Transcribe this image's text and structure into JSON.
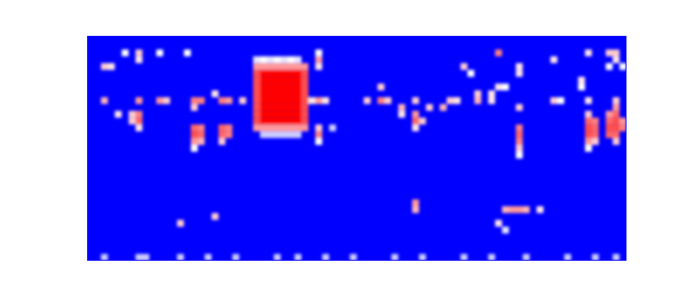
{
  "chart_data": {
    "type": "heatmap",
    "tick_labels": false,
    "xlim": [
      0,
      78
    ],
    "ylim": [
      0,
      33
    ],
    "zlim": [
      0,
      1
    ],
    "cells": [
      [
        2,
        4,
        0.6
      ],
      [
        3,
        4,
        0.55
      ],
      [
        5,
        2,
        0.5
      ],
      [
        7,
        2,
        0.6
      ],
      [
        7,
        3,
        0.55
      ],
      [
        10,
        2,
        0.5
      ],
      [
        14,
        2,
        0.5
      ],
      [
        2,
        9,
        0.65
      ],
      [
        4,
        11,
        0.55
      ],
      [
        7,
        9,
        0.7
      ],
      [
        10,
        9,
        0.7
      ],
      [
        11,
        9,
        0.6
      ],
      [
        15,
        9,
        0.75
      ],
      [
        16,
        9,
        0.75
      ],
      [
        15,
        10,
        0.6
      ],
      [
        19,
        9,
        0.75
      ],
      [
        20,
        9,
        0.7
      ],
      [
        22,
        9,
        0.6
      ],
      [
        18,
        8,
        0.55
      ],
      [
        6,
        11,
        0.6
      ],
      [
        7,
        11,
        0.75
      ],
      [
        7,
        12,
        0.8
      ],
      [
        6,
        12,
        0.6
      ],
      [
        7,
        13,
        0.55
      ],
      [
        15,
        13,
        0.8
      ],
      [
        16,
        13,
        0.75
      ],
      [
        15,
        14,
        0.85
      ],
      [
        16,
        14,
        0.8
      ],
      [
        15,
        15,
        0.7
      ],
      [
        16,
        15,
        0.65
      ],
      [
        15,
        16,
        0.5
      ],
      [
        19,
        13,
        0.8
      ],
      [
        20,
        13,
        0.75
      ],
      [
        19,
        14,
        0.8
      ],
      [
        20,
        14,
        0.75
      ],
      [
        19,
        15,
        0.6
      ],
      [
        24,
        3,
        0.45
      ],
      [
        25,
        3,
        0.5
      ],
      [
        26,
        3,
        0.45
      ],
      [
        27,
        3,
        0.5
      ],
      [
        28,
        3,
        0.45
      ],
      [
        29,
        3,
        0.5
      ],
      [
        30,
        3,
        0.45
      ],
      [
        24,
        4,
        0.7
      ],
      [
        25,
        4,
        0.7
      ],
      [
        26,
        4,
        0.7
      ],
      [
        27,
        4,
        0.7
      ],
      [
        28,
        4,
        0.7
      ],
      [
        29,
        4,
        0.7
      ],
      [
        30,
        4,
        0.7
      ],
      [
        31,
        4,
        0.7
      ],
      [
        24,
        5,
        0.85
      ],
      [
        25,
        5,
        1
      ],
      [
        26,
        5,
        1
      ],
      [
        27,
        5,
        1
      ],
      [
        28,
        5,
        1
      ],
      [
        29,
        5,
        1
      ],
      [
        30,
        5,
        1
      ],
      [
        31,
        5,
        0.85
      ],
      [
        24,
        6,
        0.85
      ],
      [
        25,
        6,
        1
      ],
      [
        26,
        6,
        1
      ],
      [
        27,
        6,
        1
      ],
      [
        28,
        6,
        1
      ],
      [
        29,
        6,
        1
      ],
      [
        30,
        6,
        1
      ],
      [
        31,
        6,
        0.85
      ],
      [
        24,
        7,
        0.85
      ],
      [
        25,
        7,
        1
      ],
      [
        26,
        7,
        1
      ],
      [
        27,
        7,
        1
      ],
      [
        28,
        7,
        1
      ],
      [
        29,
        7,
        1
      ],
      [
        30,
        7,
        1
      ],
      [
        31,
        7,
        0.85
      ],
      [
        24,
        8,
        0.85
      ],
      [
        25,
        8,
        1
      ],
      [
        26,
        8,
        1
      ],
      [
        27,
        8,
        1
      ],
      [
        28,
        8,
        1
      ],
      [
        29,
        8,
        1
      ],
      [
        30,
        8,
        1
      ],
      [
        31,
        8,
        0.85
      ],
      [
        24,
        9,
        0.85
      ],
      [
        25,
        9,
        1
      ],
      [
        26,
        9,
        1
      ],
      [
        27,
        9,
        1
      ],
      [
        28,
        9,
        1
      ],
      [
        29,
        9,
        1
      ],
      [
        30,
        9,
        1
      ],
      [
        31,
        9,
        0.85
      ],
      [
        24,
        10,
        0.85
      ],
      [
        25,
        10,
        1
      ],
      [
        26,
        10,
        1
      ],
      [
        27,
        10,
        1
      ],
      [
        28,
        10,
        1
      ],
      [
        29,
        10,
        1
      ],
      [
        30,
        10,
        1
      ],
      [
        31,
        10,
        0.85
      ],
      [
        24,
        11,
        0.85
      ],
      [
        25,
        11,
        1
      ],
      [
        26,
        11,
        1
      ],
      [
        27,
        11,
        1
      ],
      [
        28,
        11,
        1
      ],
      [
        29,
        11,
        1
      ],
      [
        30,
        11,
        1
      ],
      [
        31,
        11,
        0.85
      ],
      [
        24,
        12,
        0.85
      ],
      [
        25,
        12,
        1
      ],
      [
        26,
        12,
        1
      ],
      [
        27,
        12,
        1
      ],
      [
        28,
        12,
        1
      ],
      [
        29,
        12,
        1
      ],
      [
        30,
        12,
        1
      ],
      [
        31,
        12,
        0.85
      ],
      [
        24,
        13,
        0.7
      ],
      [
        25,
        13,
        0.7
      ],
      [
        26,
        13,
        0.7
      ],
      [
        27,
        13,
        0.7
      ],
      [
        28,
        13,
        0.7
      ],
      [
        29,
        13,
        0.7
      ],
      [
        30,
        13,
        0.7
      ],
      [
        31,
        13,
        0.7
      ],
      [
        25,
        14,
        0.4
      ],
      [
        26,
        14,
        0.4
      ],
      [
        27,
        14,
        0.4
      ],
      [
        28,
        14,
        0.4
      ],
      [
        29,
        14,
        0.4
      ],
      [
        30,
        14,
        0.4
      ],
      [
        32,
        9,
        0.55
      ],
      [
        33,
        2,
        0.5
      ],
      [
        33,
        3,
        0.7
      ],
      [
        33,
        4,
        0.55
      ],
      [
        33,
        9,
        0.7
      ],
      [
        34,
        9,
        0.55
      ],
      [
        33,
        13,
        0.6
      ],
      [
        33,
        14,
        0.75
      ],
      [
        33,
        15,
        0.5
      ],
      [
        35,
        13,
        0.4
      ],
      [
        40,
        9,
        0.6
      ],
      [
        42,
        7,
        0.6
      ],
      [
        42,
        9,
        0.75
      ],
      [
        43,
        9,
        0.6
      ],
      [
        45,
        10,
        0.65
      ],
      [
        45,
        11,
        0.55
      ],
      [
        47,
        9,
        0.6
      ],
      [
        47,
        11,
        0.7
      ],
      [
        47,
        12,
        0.8
      ],
      [
        48,
        12,
        0.6
      ],
      [
        47,
        13,
        0.55
      ],
      [
        49,
        10,
        0.6
      ],
      [
        51,
        10,
        0.65
      ],
      [
        52,
        9,
        0.6
      ],
      [
        53,
        9,
        0.55
      ],
      [
        54,
        4,
        0.6
      ],
      [
        55,
        5,
        0.5
      ],
      [
        56,
        8,
        0.6
      ],
      [
        56,
        9,
        0.65
      ],
      [
        58,
        8,
        0.55
      ],
      [
        59,
        2,
        0.75
      ],
      [
        59,
        7,
        0.55
      ],
      [
        60,
        7,
        0.5
      ],
      [
        58,
        9,
        0.55
      ],
      [
        62,
        4,
        0.55
      ],
      [
        62,
        5,
        0.55
      ],
      [
        62,
        10,
        0.6
      ],
      [
        62,
        13,
        0.75
      ],
      [
        62,
        14,
        0.8
      ],
      [
        62,
        15,
        0.75
      ],
      [
        62,
        16,
        0.6
      ],
      [
        62,
        17,
        0.5
      ],
      [
        67,
        3,
        0.55
      ],
      [
        67,
        9,
        0.6
      ],
      [
        68,
        9,
        0.5
      ],
      [
        71,
        6,
        0.55
      ],
      [
        71,
        7,
        0.5
      ],
      [
        72,
        11,
        0.6
      ],
      [
        72,
        12,
        0.8
      ],
      [
        73,
        12,
        0.75
      ],
      [
        72,
        13,
        0.85
      ],
      [
        73,
        13,
        0.8
      ],
      [
        72,
        14,
        0.85
      ],
      [
        73,
        14,
        0.8
      ],
      [
        72,
        15,
        0.7
      ],
      [
        73,
        15,
        0.6
      ],
      [
        72,
        16,
        0.5
      ],
      [
        76,
        9,
        0.6
      ],
      [
        76,
        10,
        0.7
      ],
      [
        75,
        11,
        0.7
      ],
      [
        76,
        11,
        0.8
      ],
      [
        75,
        12,
        0.8
      ],
      [
        76,
        12,
        0.85
      ],
      [
        77,
        12,
        0.7
      ],
      [
        75,
        13,
        0.85
      ],
      [
        76,
        13,
        0.85
      ],
      [
        77,
        13,
        0.75
      ],
      [
        75,
        14,
        0.8
      ],
      [
        76,
        14,
        0.8
      ],
      [
        76,
        15,
        0.6
      ],
      [
        72,
        2,
        0.55
      ],
      [
        75,
        2,
        0.6
      ],
      [
        76,
        2,
        0.6
      ],
      [
        76,
        3,
        0.55
      ],
      [
        75,
        4,
        0.5
      ],
      [
        77,
        4,
        0.5
      ],
      [
        72,
        9,
        0.55
      ],
      [
        47,
        24,
        0.7
      ],
      [
        47,
        25,
        0.65
      ],
      [
        13,
        27,
        0.6
      ],
      [
        18,
        26,
        0.6
      ],
      [
        60,
        25,
        0.65
      ],
      [
        61,
        25,
        0.7
      ],
      [
        62,
        25,
        0.7
      ],
      [
        63,
        25,
        0.65
      ],
      [
        65,
        25,
        0.55
      ],
      [
        59,
        27,
        0.55
      ],
      [
        60,
        28,
        0.45
      ],
      [
        2,
        32,
        0.4
      ],
      [
        7,
        32,
        0.4
      ],
      [
        8,
        32,
        0.4
      ],
      [
        13,
        32,
        0.4
      ],
      [
        17,
        32,
        0.4
      ],
      [
        21,
        32,
        0.4
      ],
      [
        27,
        32,
        0.4
      ],
      [
        30,
        32,
        0.4
      ],
      [
        34,
        32,
        0.4
      ],
      [
        38,
        32,
        0.4
      ],
      [
        44,
        32,
        0.4
      ],
      [
        48,
        32,
        0.4
      ],
      [
        54,
        32,
        0.4
      ],
      [
        58,
        32,
        0.4
      ],
      [
        63,
        32,
        0.4
      ],
      [
        69,
        32,
        0.4
      ],
      [
        73,
        32,
        0.4
      ],
      [
        76,
        32,
        0.4
      ]
    ]
  }
}
